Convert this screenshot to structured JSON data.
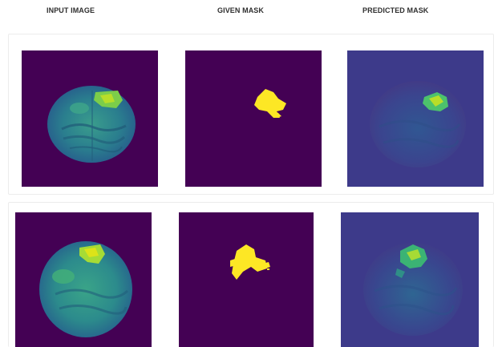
{
  "headers": {
    "input": "INPUT IMAGE",
    "given": "GIVEN MASK",
    "predicted": "PREDICTED MASK"
  },
  "colors": {
    "background_dark": "#440154",
    "predicted_background": "#3d3a8a",
    "mask_yellow": "#fde725",
    "tissue_teal": "#2f8f8c",
    "tumor_green": "#9bd93c"
  }
}
